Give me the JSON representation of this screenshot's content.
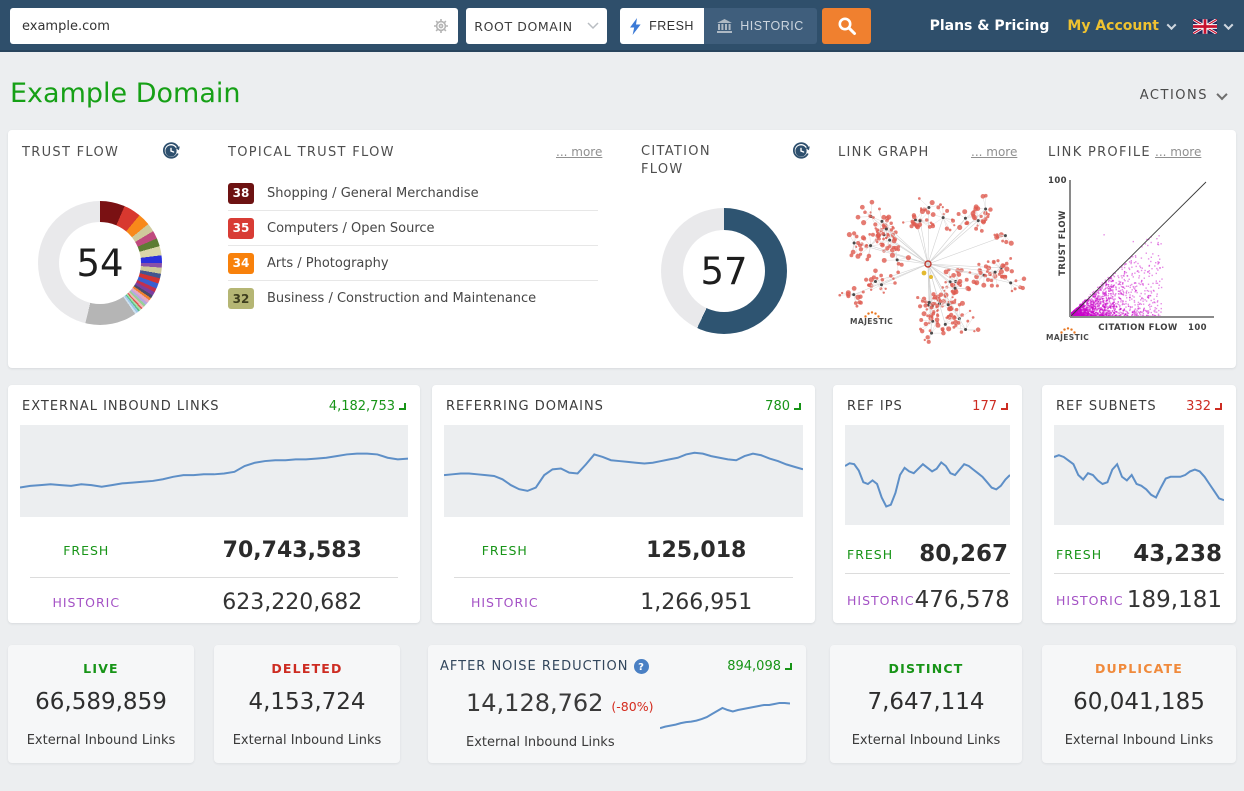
{
  "navbar": {
    "search_value": "example.com",
    "scope_selected": "ROOT DOMAIN",
    "fresh_label": "FRESH",
    "historic_label": "HISTORIC",
    "plans_pricing_label": "Plans & Pricing",
    "my_account_label": "My Account"
  },
  "page": {
    "title": "Example Domain",
    "actions_label": "ACTIONS"
  },
  "overview": {
    "trust_flow": {
      "title": "TRUST FLOW",
      "value": "54",
      "rest_color": "#e9e9eb",
      "segments": [
        {
          "c": "#7a1113",
          "p": 6.5
        },
        {
          "c": "#d8382f",
          "p": 4.5
        },
        {
          "c": "#f8891a",
          "p": 3.2
        },
        {
          "c": "#cfc99b",
          "p": 2.2
        },
        {
          "c": "#bf4a7e",
          "p": 2.1
        },
        {
          "c": "#5d7c33",
          "p": 2.1
        },
        {
          "c": "#d9d5a9",
          "p": 2.4
        },
        {
          "c": "#2a30dd",
          "p": 2.0
        },
        {
          "c": "#8a50a8",
          "p": 1.2
        },
        {
          "c": "#cdc89a",
          "p": 1.6
        },
        {
          "c": "#45558f",
          "p": 1.2
        },
        {
          "c": "#d23434",
          "p": 1.4
        },
        {
          "c": "#3a5fd0",
          "p": 1.4
        },
        {
          "c": "#c03050",
          "p": 1.0
        },
        {
          "c": "#7a3fa0",
          "p": 1.0
        },
        {
          "c": "#4a4a6a",
          "p": 0.8
        },
        {
          "c": "#f08030",
          "p": 0.7
        },
        {
          "c": "#e8a8c0",
          "p": 0.8
        },
        {
          "c": "#b8a8e0",
          "p": 0.7
        },
        {
          "c": "#98d098",
          "p": 0.7
        },
        {
          "c": "#f2b9b9",
          "p": 0.5
        },
        {
          "c": "#e05050",
          "p": 0.4
        },
        {
          "c": "#a8e0a8",
          "p": 0.5
        },
        {
          "c": "#5cc08a",
          "p": 0.4
        },
        {
          "c": "#a0c8e8",
          "p": 0.6
        },
        {
          "c": "#cfe2f0",
          "p": 0.5
        },
        {
          "c": "#b5b5b5",
          "p": 13.4
        }
      ]
    },
    "topical_trust_flow": {
      "title": "TOPICAL TRUST FLOW",
      "more_label": "... more",
      "topics": [
        {
          "score": "38",
          "label": "Shopping / General Merchandise",
          "badge_bg": "#6d1212",
          "badge_text": "#ffffff"
        },
        {
          "score": "35",
          "label": "Computers / Open Source",
          "badge_bg": "#d83c35",
          "badge_text": "#ffffff"
        },
        {
          "score": "34",
          "label": "Arts / Photography",
          "badge_bg": "#f8810b",
          "badge_text": "#ffffff"
        },
        {
          "score": "32",
          "label": "Business / Construction and Maintenance",
          "badge_bg": "#b5b674",
          "badge_text": "#3f3f1f"
        }
      ]
    },
    "citation_flow": {
      "title": "CITATION FLOW",
      "value": "57",
      "rest_color": "#e9e9eb",
      "segments": [
        {
          "c": "#2e5471",
          "p": 57
        }
      ]
    },
    "link_graph": {
      "title": "LINK GRAPH",
      "more_label": "... more",
      "brand": "MAJESTIC"
    },
    "link_profile": {
      "title": "LINK PROFILE",
      "more_label": "... more",
      "brand": "MAJESTIC",
      "xlabel": "CITATION FLOW",
      "ylabel": "TRUST FLOW",
      "x_max": "100",
      "y_max": "100"
    }
  },
  "metric_cards": [
    {
      "title": "EXTERNAL INBOUND LINKS",
      "delta": "4,182,753",
      "delta_dir": "up",
      "fresh_label": "FRESH",
      "fresh_value": "70,743,583",
      "historic_label": "HISTORIC",
      "historic_value": "623,220,682",
      "sparkline": [
        30,
        32,
        33,
        34,
        33,
        32,
        34,
        33,
        31,
        33,
        35,
        36,
        37,
        38,
        40,
        43,
        45,
        45,
        46,
        46,
        47,
        49,
        56,
        60,
        62,
        63,
        63,
        64,
        64,
        65,
        66,
        68,
        70,
        71,
        71,
        70,
        66,
        64,
        65
      ]
    },
    {
      "title": "REFERRING DOMAINS",
      "delta": "780",
      "delta_dir": "up",
      "fresh_label": "FRESH",
      "fresh_value": "125,018",
      "historic_label": "HISTORIC",
      "historic_value": "1,266,951",
      "sparkline": [
        45,
        46,
        47,
        47,
        46,
        45,
        44,
        40,
        33,
        28,
        26,
        30,
        45,
        52,
        53,
        48,
        47,
        58,
        70,
        67,
        63,
        62,
        61,
        60,
        59,
        60,
        62,
        64,
        66,
        70,
        72,
        71,
        68,
        66,
        64,
        63,
        68,
        71,
        69,
        65,
        62,
        58,
        55,
        52
      ]
    },
    {
      "title": "REF IPS",
      "delta": "177",
      "delta_dir": "down",
      "fresh_label": "FRESH",
      "fresh_value": "80,267",
      "historic_label": "HISTORIC",
      "historic_value": "476,578",
      "sparkline": [
        60,
        63,
        62,
        55,
        42,
        40,
        44,
        40,
        25,
        15,
        17,
        30,
        50,
        58,
        54,
        52,
        57,
        62,
        58,
        54,
        57,
        64,
        60,
        52,
        50,
        56,
        62,
        60,
        56,
        52,
        48,
        42,
        36,
        34,
        38,
        45,
        50
      ]
    },
    {
      "title": "REF SUBNETS",
      "delta": "332",
      "delta_dir": "down",
      "fresh_label": "FRESH",
      "fresh_value": "43,238",
      "historic_label": "HISTORIC",
      "historic_value": "189,181",
      "sparkline": [
        70,
        72,
        70,
        66,
        62,
        50,
        45,
        52,
        50,
        44,
        40,
        42,
        56,
        62,
        48,
        44,
        50,
        40,
        38,
        34,
        28,
        25,
        36,
        46,
        48,
        48,
        48,
        50,
        54,
        56,
        54,
        48,
        40,
        32,
        24,
        22
      ]
    }
  ],
  "summary_cards": [
    {
      "label": "LIVE",
      "color": "#179417",
      "value": "66,589,859",
      "sub": "External Inbound Links"
    },
    {
      "label": "DELETED",
      "color": "#cd2c22",
      "value": "4,153,724",
      "sub": "External Inbound Links"
    },
    {
      "label": "DISTINCT",
      "color": "#179417",
      "value": "7,647,114",
      "sub": "External Inbound Links"
    },
    {
      "label": "DUPLICATE",
      "color": "#f08a3c",
      "value": "60,041,185",
      "sub": "External Inbound Links"
    }
  ],
  "noise_card": {
    "title": "AFTER NOISE REDUCTION",
    "delta": "894,098",
    "delta_dir": "up",
    "value": "14,128,762",
    "pct": "(-80%)",
    "sub": "External Inbound Links",
    "sparkline": [
      12,
      15,
      17,
      19,
      22,
      24,
      25,
      27,
      30,
      34,
      40,
      46,
      52,
      48,
      45,
      48,
      50,
      52,
      54,
      56,
      58,
      58,
      60,
      62,
      62,
      61
    ]
  }
}
